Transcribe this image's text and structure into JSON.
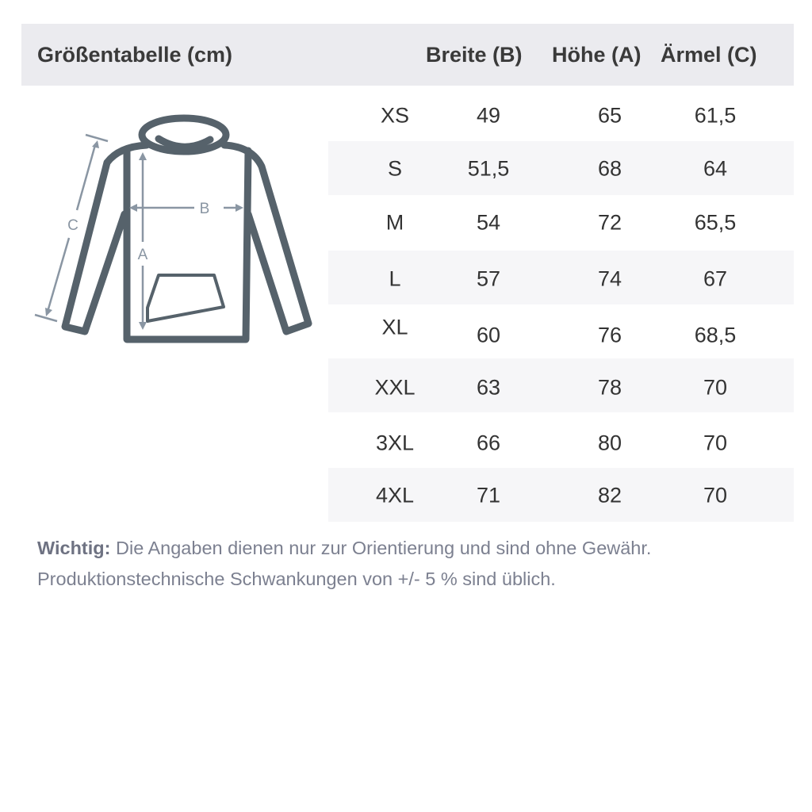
{
  "header": {
    "title": "Größentabelle (cm)",
    "columns": [
      "Breite (B)",
      "Höhe (A)",
      "Ärmel (C)"
    ]
  },
  "diagram": {
    "icon": "hoodie-icon",
    "labels": {
      "width": "B",
      "height": "A",
      "sleeve": "C"
    },
    "color": "#56626b",
    "arrow_color": "#8a96a3"
  },
  "rows": [
    {
      "size": "XS",
      "breite": "49",
      "hoehe": "65",
      "aermel": "61,5"
    },
    {
      "size": "S",
      "breite": "51,5",
      "hoehe": "68",
      "aermel": "64"
    },
    {
      "size": "M",
      "breite": "54",
      "hoehe": "72",
      "aermel": "65,5"
    },
    {
      "size": "L",
      "breite": "57",
      "hoehe": "74",
      "aermel": "67"
    },
    {
      "size": "XL",
      "breite": "60",
      "hoehe": "76",
      "aermel": "68,5"
    },
    {
      "size": "XXL",
      "breite": "63",
      "hoehe": "78",
      "aermel": "70"
    },
    {
      "size": "3XL",
      "breite": "66",
      "hoehe": "80",
      "aermel": "70"
    },
    {
      "size": "4XL",
      "breite": "71",
      "hoehe": "82",
      "aermel": "70"
    }
  ],
  "note": {
    "label": "Wichtig:",
    "line1": " Die Angaben dienen nur zur Orientierung und sind ohne Gewähr.",
    "line2": "Produktionstechnische Schwankungen von +/- 5 % sind üblich."
  }
}
